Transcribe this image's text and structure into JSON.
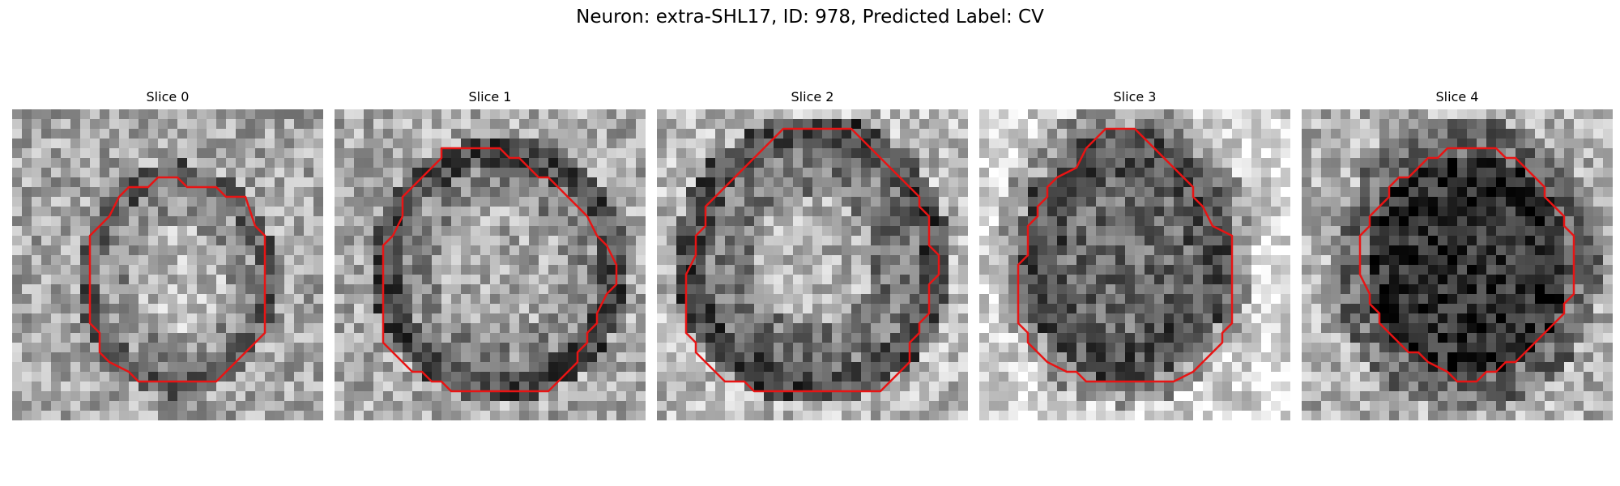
{
  "figure": {
    "title": "Neuron: extra-SHL17, ID: 978, Predicted Label: CV",
    "contour_color": "#e81414",
    "colormap": "gray"
  },
  "panels": [
    {
      "title": "Slice 0",
      "grid": 32,
      "style": "bright-center",
      "contour": [
        [
          15,
          7
        ],
        [
          17,
          7
        ],
        [
          18,
          8
        ],
        [
          21,
          8
        ],
        [
          22,
          9
        ],
        [
          24,
          9
        ],
        [
          25,
          12
        ],
        [
          26,
          13
        ],
        [
          26,
          23
        ],
        [
          24,
          25
        ],
        [
          23,
          26
        ],
        [
          21,
          28
        ],
        [
          13,
          28
        ],
        [
          12,
          27
        ],
        [
          10,
          26
        ],
        [
          9,
          25
        ],
        [
          9,
          23
        ],
        [
          8,
          22
        ],
        [
          8,
          13
        ],
        [
          9,
          12
        ],
        [
          10,
          11
        ],
        [
          11,
          9
        ],
        [
          12,
          8
        ],
        [
          14,
          8
        ]
      ]
    },
    {
      "title": "Slice 1",
      "grid": 32,
      "style": "ring",
      "contour": [
        [
          11,
          4
        ],
        [
          17,
          4
        ],
        [
          18,
          5
        ],
        [
          19,
          5
        ],
        [
          20,
          6
        ],
        [
          21,
          7
        ],
        [
          22,
          7
        ],
        [
          24,
          9
        ],
        [
          25,
          10
        ],
        [
          26,
          11
        ],
        [
          27,
          13
        ],
        [
          28,
          14
        ],
        [
          29,
          16
        ],
        [
          29,
          17
        ],
        [
          29,
          18
        ],
        [
          28,
          19
        ],
        [
          27,
          21
        ],
        [
          27,
          22
        ],
        [
          26,
          23
        ],
        [
          26,
          24
        ],
        [
          25,
          25
        ],
        [
          25,
          26
        ],
        [
          24,
          27
        ],
        [
          23,
          28
        ],
        [
          22,
          29
        ],
        [
          12,
          29
        ],
        [
          11,
          28
        ],
        [
          10,
          28
        ],
        [
          9,
          27
        ],
        [
          8,
          27
        ],
        [
          7,
          26
        ],
        [
          6,
          25
        ],
        [
          5,
          24
        ],
        [
          5,
          23
        ],
        [
          5,
          21
        ],
        [
          5,
          19
        ],
        [
          5,
          16
        ],
        [
          5,
          14
        ],
        [
          6,
          13
        ],
        [
          7,
          11
        ],
        [
          7,
          9
        ],
        [
          8,
          8
        ],
        [
          9,
          7
        ],
        [
          10,
          6
        ],
        [
          11,
          5
        ]
      ]
    },
    {
      "title": "Slice 2",
      "grid": 32,
      "style": "ring-dark",
      "contour": [
        [
          13,
          2
        ],
        [
          20,
          2
        ],
        [
          21,
          3
        ],
        [
          22,
          4
        ],
        [
          23,
          5
        ],
        [
          24,
          6
        ],
        [
          25,
          7
        ],
        [
          26,
          8
        ],
        [
          27,
          9
        ],
        [
          27,
          10
        ],
        [
          28,
          11
        ],
        [
          28,
          14
        ],
        [
          29,
          15
        ],
        [
          29,
          17
        ],
        [
          28,
          18
        ],
        [
          28,
          21
        ],
        [
          27,
          22
        ],
        [
          27,
          23
        ],
        [
          26,
          24
        ],
        [
          26,
          26
        ],
        [
          25,
          27
        ],
        [
          24,
          28
        ],
        [
          23,
          29
        ],
        [
          10,
          29
        ],
        [
          9,
          28
        ],
        [
          7,
          28
        ],
        [
          6,
          27
        ],
        [
          5,
          26
        ],
        [
          4,
          25
        ],
        [
          4,
          24
        ],
        [
          3,
          23
        ],
        [
          3,
          17
        ],
        [
          4,
          15
        ],
        [
          4,
          13
        ],
        [
          5,
          12
        ],
        [
          5,
          10
        ],
        [
          6,
          9
        ],
        [
          7,
          8
        ],
        [
          8,
          7
        ],
        [
          9,
          6
        ],
        [
          10,
          5
        ],
        [
          11,
          4
        ],
        [
          12,
          3
        ]
      ]
    },
    {
      "title": "Slice 3",
      "grid": 32,
      "style": "dark-blob",
      "contour": [
        [
          13,
          2
        ],
        [
          16,
          2
        ],
        [
          17,
          3
        ],
        [
          18,
          4
        ],
        [
          19,
          5
        ],
        [
          20,
          6
        ],
        [
          21,
          7
        ],
        [
          22,
          8
        ],
        [
          22,
          9
        ],
        [
          23,
          10
        ],
        [
          24,
          12
        ],
        [
          26,
          13
        ],
        [
          26,
          22
        ],
        [
          25,
          23
        ],
        [
          25,
          24
        ],
        [
          24,
          25
        ],
        [
          23,
          26
        ],
        [
          22,
          27
        ],
        [
          20,
          28
        ],
        [
          11,
          28
        ],
        [
          10,
          27
        ],
        [
          9,
          27
        ],
        [
          7,
          26
        ],
        [
          6,
          25
        ],
        [
          5,
          24
        ],
        [
          5,
          23
        ],
        [
          4,
          22
        ],
        [
          4,
          16
        ],
        [
          5,
          15
        ],
        [
          5,
          12
        ],
        [
          6,
          11
        ],
        [
          6,
          10
        ],
        [
          7,
          9
        ],
        [
          7,
          8
        ],
        [
          8,
          7
        ],
        [
          10,
          6
        ],
        [
          11,
          4
        ],
        [
          12,
          3
        ]
      ]
    },
    {
      "title": "Slice 4",
      "grid": 32,
      "style": "very-dark-blob",
      "contour": [
        [
          16,
          4
        ],
        [
          20,
          4
        ],
        [
          21,
          5
        ],
        [
          22,
          5
        ],
        [
          23,
          6
        ],
        [
          24,
          7
        ],
        [
          25,
          8
        ],
        [
          25,
          9
        ],
        [
          26,
          10
        ],
        [
          27,
          11
        ],
        [
          27,
          12
        ],
        [
          28,
          13
        ],
        [
          28,
          19
        ],
        [
          27,
          20
        ],
        [
          27,
          21
        ],
        [
          26,
          22
        ],
        [
          25,
          23
        ],
        [
          24,
          24
        ],
        [
          23,
          25
        ],
        [
          22,
          26
        ],
        [
          21,
          26
        ],
        [
          20,
          27
        ],
        [
          19,
          27
        ],
        [
          18,
          28
        ],
        [
          16,
          28
        ],
        [
          15,
          27
        ],
        [
          13,
          26
        ],
        [
          12,
          25
        ],
        [
          11,
          25
        ],
        [
          10,
          24
        ],
        [
          9,
          23
        ],
        [
          8,
          22
        ],
        [
          8,
          21
        ],
        [
          7,
          20
        ],
        [
          7,
          19
        ],
        [
          6,
          17
        ],
        [
          6,
          13
        ],
        [
          7,
          12
        ],
        [
          7,
          11
        ],
        [
          8,
          10
        ],
        [
          9,
          9
        ],
        [
          9,
          8
        ],
        [
          10,
          7
        ],
        [
          11,
          7
        ],
        [
          12,
          6
        ],
        [
          13,
          5
        ],
        [
          14,
          5
        ],
        [
          15,
          4
        ]
      ]
    }
  ]
}
